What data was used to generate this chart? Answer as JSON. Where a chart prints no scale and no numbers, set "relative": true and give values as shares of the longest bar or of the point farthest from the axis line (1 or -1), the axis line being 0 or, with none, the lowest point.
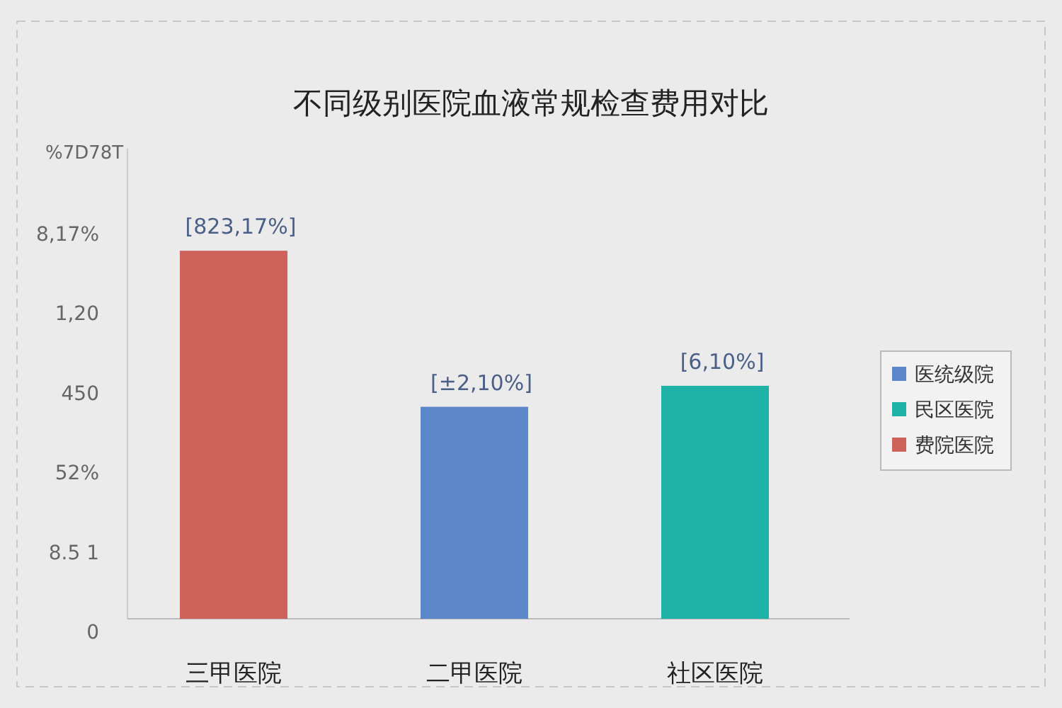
{
  "chart_data": {
    "type": "bar",
    "title": "不同级别医院血液常规检查费用对比",
    "ylabel": "%7D78T",
    "relative": true,
    "categories": [
      "三甲医院",
      "二甲医院",
      "社区医院"
    ],
    "series": [
      {
        "name": "医统级院",
        "color": "#5b87c9",
        "values": [
          null,
          0.576,
          null
        ]
      },
      {
        "name": "民区医院",
        "color": "#1fb3a8",
        "values": [
          null,
          null,
          0.633
        ]
      },
      {
        "name": "费院医院",
        "color": "#cd625a",
        "values": [
          1,
          null,
          null
        ]
      }
    ],
    "annotations": [
      "8,17%",
      "1,20",
      "450",
      "52%",
      "8.5 1",
      "0",
      "[823,17%]",
      "[±2,10%]",
      "[6,10%]"
    ],
    "legend": "right",
    "grid": false
  }
}
